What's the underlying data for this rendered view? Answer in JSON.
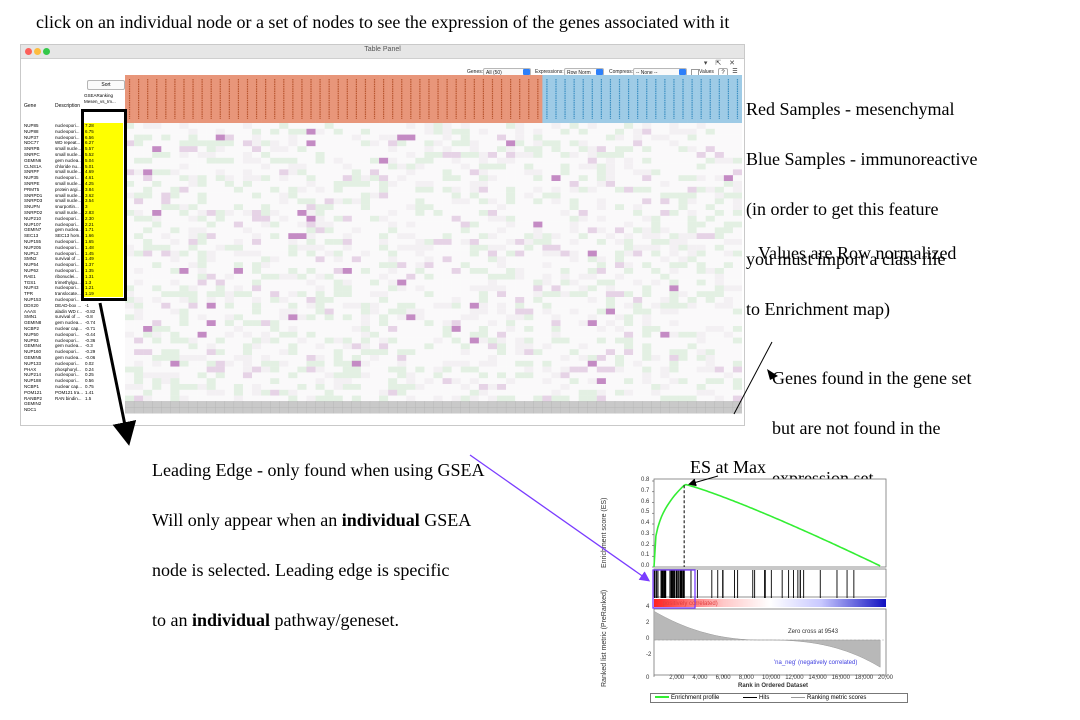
{
  "instruction": "click on an individual node or a set of nodes to see the expression of the genes associated with it",
  "annotations": {
    "samples_lines": [
      "Red Samples - mesenchymal",
      "Blue Samples - immunoreactive",
      "(in order to get this feature",
      "you must import a class file",
      "to Enrichment map)"
    ],
    "normalized": "Values are Row normalized",
    "missing_genes_lines": [
      "Genes found in the gene set",
      "but are not found in the",
      "expression set"
    ],
    "leading_edge": {
      "line1": "Leading Edge - only found when using GSEA",
      "line2_pre": "Will only appear when an ",
      "line2_bold": "individual",
      "line2_post": " GSEA",
      "line3": "node is selected. Leading edge is specific",
      "line4_pre": "to an ",
      "line4_bold": "individual",
      "line4_post": " pathway/geneset."
    },
    "es_at_max": "ES at Max"
  },
  "window": {
    "title": "Table Panel",
    "window_controls": "▾ ⇱ ✕",
    "toolbar": {
      "genes_label": "Genes:",
      "genes_value": "All (50)",
      "expressions_label": "Expressions:",
      "expressions_value": "Row Norm",
      "compress_label": "Compress:",
      "compress_value": "-- None --",
      "values_label": "Values",
      "help_label": "?",
      "menu_label": "☰"
    },
    "columns": {
      "gene": "Gene",
      "description": "Description",
      "sort": "Sort",
      "rank_header_lines": [
        "GSEARanking",
        "Mesen_vs_Im..."
      ]
    },
    "leading_edge_count": 30,
    "red_sample_count": 46,
    "blue_sample_count": 22,
    "rows": [
      {
        "gene": "NUP85",
        "desc": "nucleopori...",
        "rank": "7.28"
      },
      {
        "gene": "NUP88",
        "desc": "nucleopori...",
        "rank": "6.75"
      },
      {
        "gene": "NUP37",
        "desc": "nucleopori...",
        "rank": "6.56"
      },
      {
        "gene": "NDC77",
        "desc": "WD repeat...",
        "rank": "6.27"
      },
      {
        "gene": "SNRPB",
        "desc": "small nucle...",
        "rank": "5.57"
      },
      {
        "gene": "SNRPC",
        "desc": "small nucle...",
        "rank": "5.52"
      },
      {
        "gene": "GEMIN6",
        "desc": "gem nuclea...",
        "rank": "5.04"
      },
      {
        "gene": "CLNS1A",
        "desc": "chloride nu...",
        "rank": "5.01"
      },
      {
        "gene": "SNRPF",
        "desc": "small nucle...",
        "rank": "4.69"
      },
      {
        "gene": "NUP35",
        "desc": "nucleopori...",
        "rank": "4.61"
      },
      {
        "gene": "SNRPE",
        "desc": "small nucle...",
        "rank": "4.25"
      },
      {
        "gene": "PRMT5",
        "desc": "protein argi...",
        "rank": "3.84"
      },
      {
        "gene": "SNRPD1",
        "desc": "small nucle...",
        "rank": "3.62"
      },
      {
        "gene": "SNRPD3",
        "desc": "small nucle...",
        "rank": "3.54"
      },
      {
        "gene": "SNUPN",
        "desc": "snurportin...",
        "rank": "3"
      },
      {
        "gene": "SNRPD2",
        "desc": "small nucle...",
        "rank": "2.83"
      },
      {
        "gene": "NUP210",
        "desc": "nucleopori...",
        "rank": "2.30"
      },
      {
        "gene": "NUP107",
        "desc": "nucleopori...",
        "rank": "2.21"
      },
      {
        "gene": "GEMIN7",
        "desc": "gem nuclea...",
        "rank": "1.71"
      },
      {
        "gene": "SEC13",
        "desc": "SEC13 hom...",
        "rank": "1.66"
      },
      {
        "gene": "NUP155",
        "desc": "nucleopori...",
        "rank": "1.65"
      },
      {
        "gene": "NUP205",
        "desc": "nucleopori...",
        "rank": "1.48"
      },
      {
        "gene": "NUPL2",
        "desc": "nucleopori...",
        "rank": "1.45"
      },
      {
        "gene": "SMN2",
        "desc": "survival of ...",
        "rank": "1.49"
      },
      {
        "gene": "NUP54",
        "desc": "nucleopori...",
        "rank": "1.37"
      },
      {
        "gene": "NUP62",
        "desc": "nucleopori...",
        "rank": "1.35"
      },
      {
        "gene": "RAE1",
        "desc": "ribonuclei...",
        "rank": "1.31"
      },
      {
        "gene": "TGS1",
        "desc": "trimethylgu...",
        "rank": "1.3"
      },
      {
        "gene": "NUP43",
        "desc": "nucleopori...",
        "rank": "1.21"
      },
      {
        "gene": "TPR",
        "desc": "translocate...",
        "rank": "1.19"
      },
      {
        "gene": "NUP153",
        "desc": "nucleopori...",
        "rank": "1"
      },
      {
        "gene": "DDX20",
        "desc": "DEAD-box ...",
        "rank": "-1"
      },
      {
        "gene": "AAAS",
        "desc": "aladin WD r...",
        "rank": "-0.82"
      },
      {
        "gene": "SMN1",
        "desc": "survival of ...",
        "rank": "-0.8"
      },
      {
        "gene": "GEMIN8",
        "desc": "gem nuclea...",
        "rank": "-0.74"
      },
      {
        "gene": "NCBP2",
        "desc": "nuclear cap...",
        "rank": "-0.71"
      },
      {
        "gene": "NUP50",
        "desc": "nucleopori...",
        "rank": "-0.44"
      },
      {
        "gene": "NUP93",
        "desc": "nucleopori...",
        "rank": "-0.36"
      },
      {
        "gene": "GEMIN4",
        "desc": "gem nuclea...",
        "rank": "-0.3"
      },
      {
        "gene": "NUP160",
        "desc": "nucleopori...",
        "rank": "-0.29"
      },
      {
        "gene": "GEMIN5",
        "desc": "gem nuclea...",
        "rank": "-0.06"
      },
      {
        "gene": "NUP133",
        "desc": "nucleopori...",
        "rank": "0.02"
      },
      {
        "gene": "PHAX",
        "desc": "phosphoryl...",
        "rank": "0.24"
      },
      {
        "gene": "NUP214",
        "desc": "nucleopori...",
        "rank": "0.25"
      },
      {
        "gene": "NUP188",
        "desc": "nucleopori...",
        "rank": "0.56"
      },
      {
        "gene": "NCBP1",
        "desc": "nuclear cap...",
        "rank": "0.75"
      },
      {
        "gene": "POM121",
        "desc": "POM121 tra...",
        "rank": "1.41"
      },
      {
        "gene": "RANBP2",
        "desc": "RAN bindin...",
        "rank": "1.5"
      },
      {
        "gene": "GEMIN2",
        "desc": "",
        "rank": ""
      },
      {
        "gene": "NDC1",
        "desc": "",
        "rank": ""
      }
    ]
  },
  "colors": {
    "red_sample_header": "#e8967a",
    "blue_sample_header": "#9ecbe6",
    "leading_edge_highlight": "#ffff00",
    "missing_rows": "#c9c9c9",
    "enrichment_profile": "#33ee33",
    "pointer_purple": "#7a3cff"
  },
  "gsea_plot": {
    "es_axis_label": "Enrichment score (ES)",
    "es_ticks": [
      "0.8",
      "0.7",
      "0.6",
      "0.5",
      "0.4",
      "0.3",
      "0.2",
      "0.1",
      "0.0"
    ],
    "metric_axis_label": "Ranked list metric (PreRanked)",
    "metric_ticks": [
      "4",
      "2",
      "0",
      "-2"
    ],
    "x_ticks": [
      "0",
      "2,000",
      "4,000",
      "6,000",
      "8,000",
      "10,000",
      "12,000",
      "14,000",
      "16,000",
      "18,000",
      "20,00"
    ],
    "x_label": "Rank in Ordered Dataset",
    "positive_label": "... positively correlated)",
    "negative_label": "'na_neg' (negatively correlated)",
    "zero_cross": "Zero cross at 9543",
    "legend": [
      "Enrichment profile",
      "Hits",
      "Ranking metric scores"
    ]
  }
}
